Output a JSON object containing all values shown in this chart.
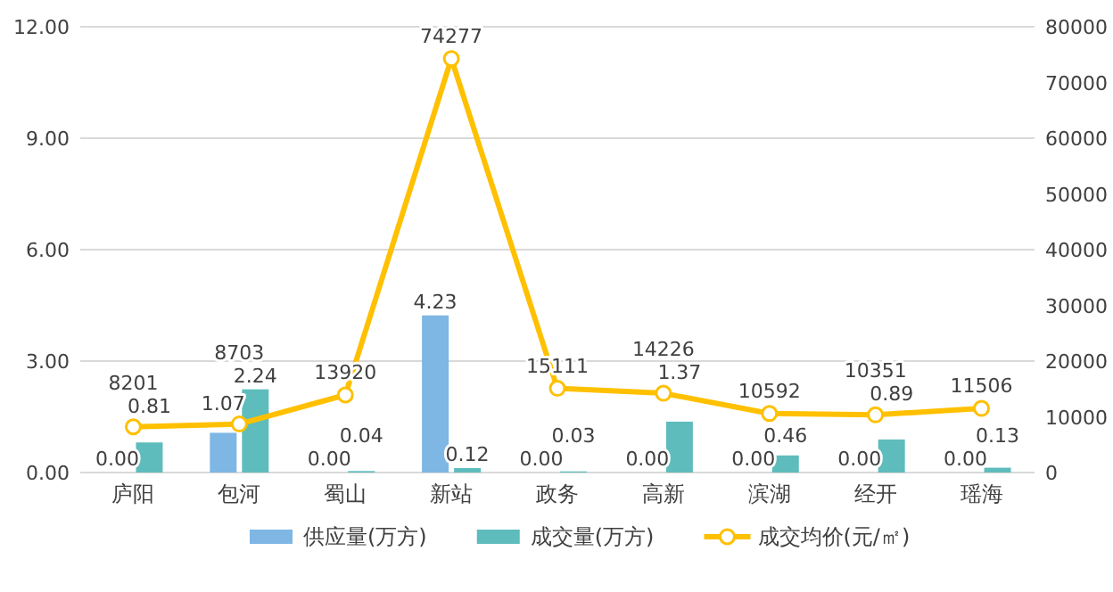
{
  "chart_data": {
    "type": "bar",
    "categories": [
      "庐阳",
      "包河",
      "蜀山",
      "新站",
      "政务",
      "高新",
      "滨湖",
      "经开",
      "瑶海"
    ],
    "series": [
      {
        "name": "供应量(万方)",
        "color": "#7eb6e4",
        "values": [
          0.0,
          1.07,
          0.0,
          4.23,
          0.0,
          0.0,
          0.0,
          0.0,
          0.0
        ]
      },
      {
        "name": "成交量(万方)",
        "color": "#5fbcbc",
        "values": [
          0.81,
          2.24,
          0.04,
          0.12,
          0.03,
          1.37,
          0.46,
          0.89,
          0.13
        ]
      },
      {
        "name": "成交均价(元/㎡)",
        "type": "line",
        "axis": "y2",
        "color": "#ffc000",
        "marker": "circle",
        "values": [
          8201,
          8703,
          13920,
          74277,
          15111,
          14226,
          10592,
          10351,
          11506
        ]
      }
    ],
    "ylim": [
      0,
      12
    ],
    "yticks": [
      {
        "value": 0,
        "label": "0.00"
      },
      {
        "value": 3,
        "label": "3.00"
      },
      {
        "value": 6,
        "label": "6.00"
      },
      {
        "value": 9,
        "label": "9.00"
      },
      {
        "value": 12,
        "label": "12.00"
      }
    ],
    "y2lim": [
      0,
      80000
    ],
    "y2ticks": [
      0,
      10000,
      20000,
      30000,
      40000,
      50000,
      60000,
      70000,
      80000
    ],
    "value_labels": [
      [
        "0.00",
        "1.07",
        "0.00",
        "4.23",
        "0.00",
        "0.00",
        "0.00",
        "0.00",
        "0.00"
      ],
      [
        "0.81",
        "2.24",
        "0.04",
        "0.12",
        "0.03",
        "1.37",
        "0.46",
        "0.89",
        "0.13"
      ],
      [
        "8201",
        "8703",
        "13920",
        "74277",
        "15111",
        "14226",
        "10592",
        "10351",
        "11506"
      ]
    ],
    "grid": "y",
    "legend": "bottom"
  }
}
